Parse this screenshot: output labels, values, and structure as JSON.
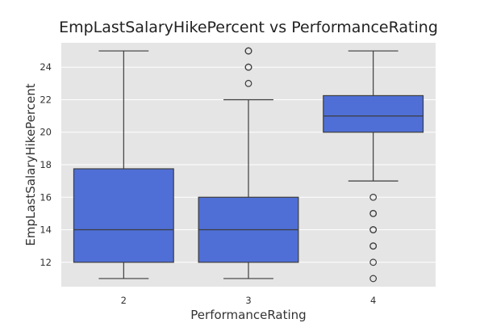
{
  "chart_data": {
    "type": "box",
    "title": "EmpLastSalaryHikePercent vs PerformanceRating",
    "xlabel": "PerformanceRating",
    "ylabel": "EmpLastSalaryHikePercent",
    "categories": [
      "2",
      "3",
      "4"
    ],
    "ylim": [
      10.5,
      25.5
    ],
    "yticks": [
      12,
      14,
      16,
      18,
      20,
      22,
      24
    ],
    "grid": true,
    "colors": {
      "box": "#4f6fd6",
      "line": "#3d3d3d",
      "background": "#e5e5e5",
      "grid": "#ffffff"
    },
    "boxes": [
      {
        "category": "2",
        "whisker_low": 11,
        "q1": 12,
        "median": 14,
        "q3": 17.75,
        "whisker_high": 25,
        "outliers": []
      },
      {
        "category": "3",
        "whisker_low": 11,
        "q1": 12,
        "median": 14,
        "q3": 16,
        "whisker_high": 22,
        "outliers": [
          23,
          24,
          24,
          25,
          25
        ]
      },
      {
        "category": "4",
        "whisker_low": 17,
        "q1": 20,
        "median": 21,
        "q3": 22.25,
        "whisker_high": 25,
        "outliers": [
          16,
          15,
          15,
          14,
          14,
          13,
          13,
          12,
          11
        ]
      }
    ]
  }
}
